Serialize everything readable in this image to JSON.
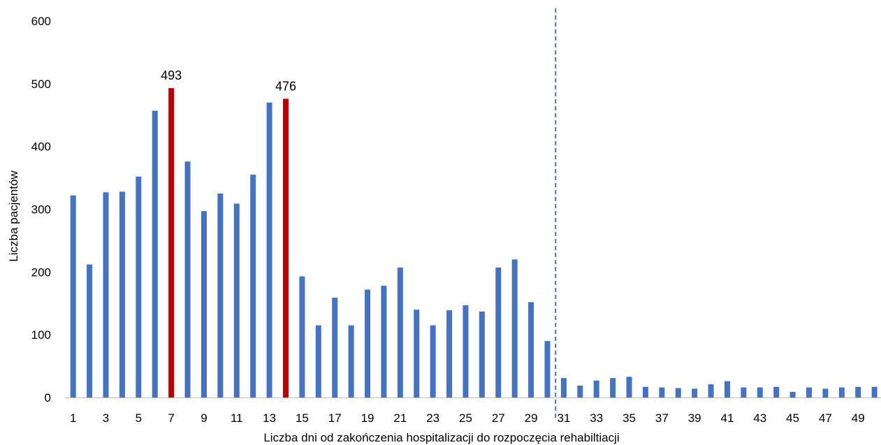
{
  "chart_data": {
    "type": "bar",
    "title": "",
    "xlabel": "Liczba dni od zakończenia hospitalizacji do rozpoczęcia rehabiltiacji",
    "ylabel": "Liczba pacjentów",
    "ylim": [
      0,
      600
    ],
    "y_ticks": [
      "0",
      "100",
      "200",
      "300",
      "400",
      "500",
      "600"
    ],
    "grid": false,
    "legend": "none",
    "categories": [
      "1",
      "2",
      "3",
      "4",
      "5",
      "6",
      "7",
      "8",
      "9",
      "10",
      "11",
      "12",
      "13",
      "14",
      "15",
      "16",
      "17",
      "18",
      "19",
      "20",
      "21",
      "22",
      "23",
      "24",
      "25",
      "26",
      "27",
      "28",
      "29",
      "30",
      "31",
      "32",
      "33",
      "34",
      "35",
      "36",
      "37",
      "38",
      "39",
      "40",
      "41",
      "42",
      "43",
      "44",
      "45",
      "46",
      "47",
      "48",
      "49",
      "50"
    ],
    "x_tick_labels": [
      "1",
      "3",
      "5",
      "7",
      "9",
      "11",
      "13",
      "15",
      "17",
      "19",
      "21",
      "23",
      "25",
      "27",
      "29",
      "31",
      "33",
      "35",
      "37",
      "39",
      "41",
      "43",
      "45",
      "47",
      "49"
    ],
    "values": [
      322,
      212,
      327,
      328,
      352,
      457,
      493,
      376,
      297,
      325,
      309,
      355,
      470,
      476,
      193,
      115,
      159,
      115,
      172,
      178,
      207,
      140,
      115,
      139,
      147,
      137,
      207,
      220,
      152,
      90,
      31,
      19,
      27,
      31,
      33,
      17,
      16,
      15,
      14,
      21,
      26,
      16,
      16,
      17,
      9,
      16,
      14,
      16,
      17,
      17
    ],
    "highlighted_categories": [
      "7",
      "14"
    ],
    "data_labels": [
      {
        "category": "7",
        "text": "493"
      },
      {
        "category": "14",
        "text": "476"
      }
    ],
    "reference_line": {
      "position_between": [
        "30",
        "31"
      ],
      "style": "dashed"
    },
    "colors": {
      "bar": "#4472C4",
      "highlight": "#C00000",
      "reference_line": "#4472C4",
      "axis": "#BFBFBF"
    }
  }
}
